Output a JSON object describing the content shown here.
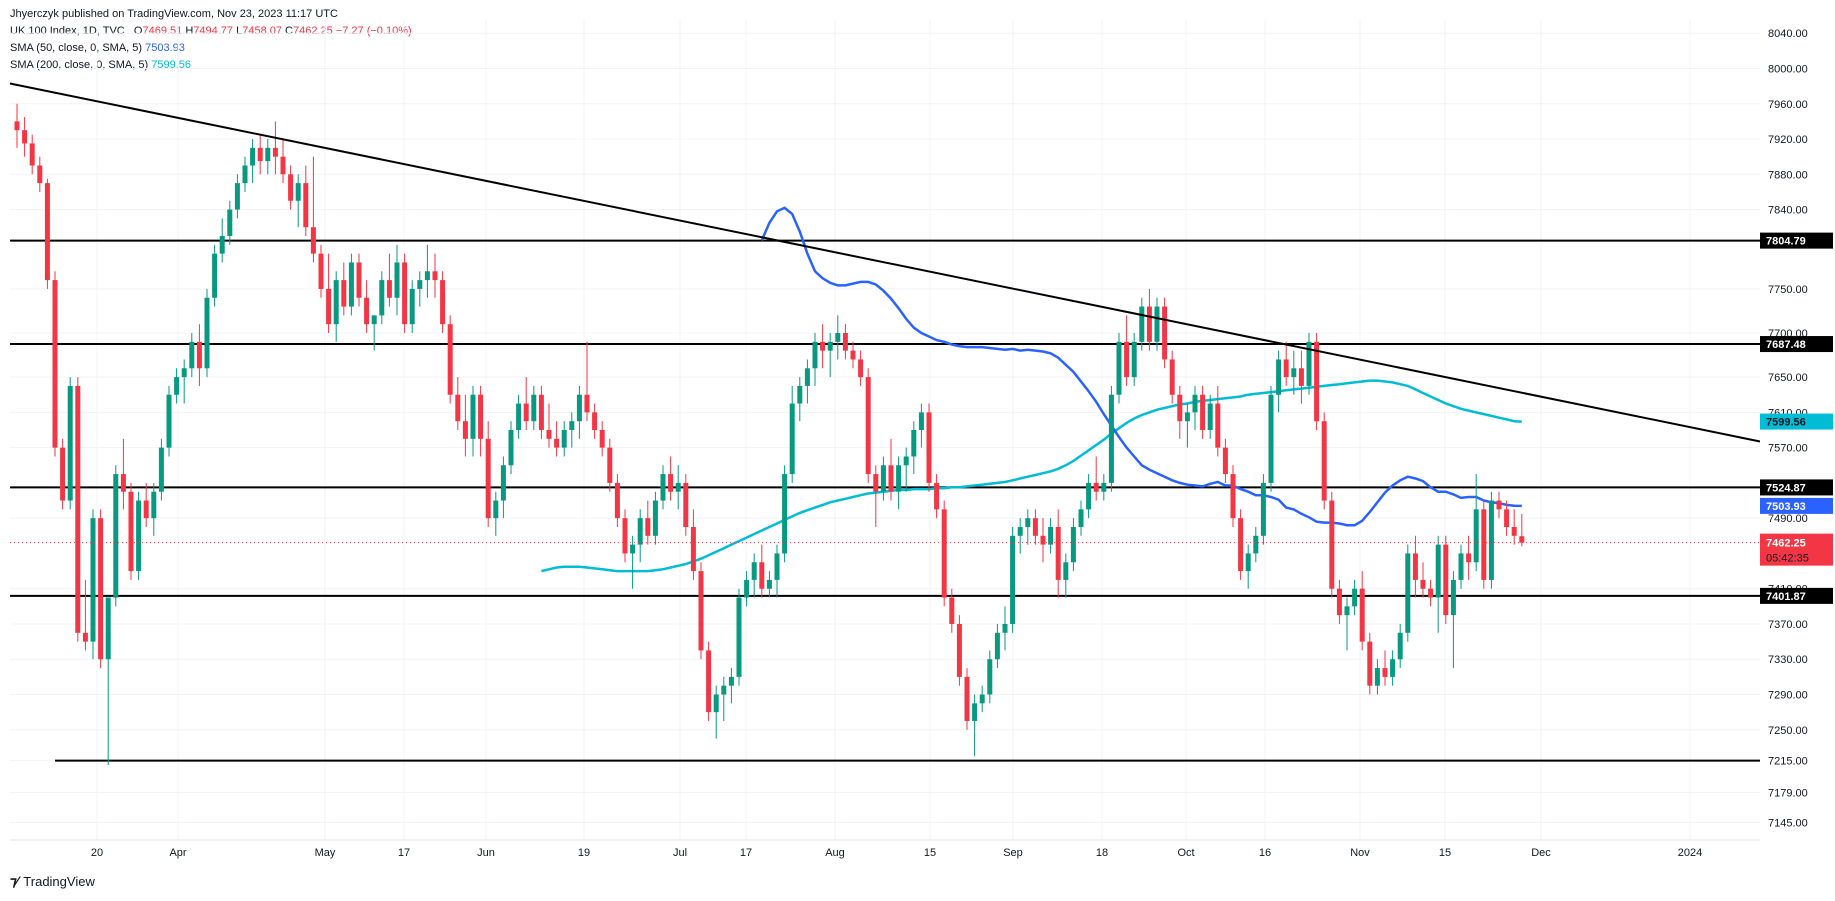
{
  "header": {
    "publisher": "Jhyerczyk published on TradingView.com, Nov 23, 2023 11:17 UTC",
    "symbol": "UK 100 Index, 1D, TVC",
    "o_label": "O",
    "o_value": "7469.51",
    "h_label": "H",
    "h_value": "7494.77",
    "l_label": "L",
    "l_value": "7458.07",
    "c_label": "C",
    "c_value": "7462.25",
    "change": "−7.27 (−0.10%)",
    "sma50_label": "SMA (50, close, 0, SMA, 5)",
    "sma50_value": "7503.93",
    "sma200_label": "SMA (200, close, 0, SMA, 5)",
    "sma200_value": "7599.56"
  },
  "footer": {
    "logo": "TradingView"
  },
  "colors": {
    "up": "#089981",
    "down": "#f23645",
    "sma50": "#2962ff",
    "sma200": "#00bcd4",
    "level": "#000000",
    "grid": "#f0f3fa"
  },
  "chart_data": {
    "type": "candlestick",
    "ylim": [
      7125,
      8055
    ],
    "y_ticks": [
      "8040.00",
      "8000.00",
      "7960.00",
      "7920.00",
      "7880.00",
      "7840.00",
      "7750.00",
      "7700.00",
      "7650.00",
      "7610.00",
      "7570.00",
      "7490.00",
      "7410.00",
      "7370.00",
      "7330.00",
      "7290.00",
      "7250.00",
      "7215.00",
      "7179.00",
      "7145.00"
    ],
    "y_tick_values": [
      8040,
      8000,
      7960,
      7920,
      7880,
      7840,
      7750,
      7700,
      7650,
      7610,
      7570,
      7490,
      7410,
      7370,
      7330,
      7290,
      7250,
      7215,
      7179,
      7145
    ],
    "x_labels": [
      "20",
      "Apr",
      "May",
      "17",
      "Jun",
      "19",
      "Jul",
      "17",
      "Aug",
      "15",
      "Sep",
      "18",
      "Oct",
      "16",
      "Nov",
      "15",
      "Dec",
      "2024"
    ],
    "horizontal_levels": [
      "7804.79",
      "7687.48",
      "7524.87",
      "7401.87"
    ],
    "horizontal_level_values": [
      7804.79,
      7687.48,
      7524.87,
      7401.87
    ],
    "support_line_value": 7215,
    "trendline": {
      "start_value": 7983,
      "end_value": 7577
    },
    "last_price": "7462.25",
    "countdown": "05:42:35",
    "sma50_last": "7503.93",
    "sma200_last": "7599.56",
    "candles": [
      [
        7940,
        7960,
        7910,
        7930
      ],
      [
        7930,
        7945,
        7900,
        7915
      ],
      [
        7915,
        7925,
        7880,
        7890
      ],
      [
        7890,
        7900,
        7860,
        7870
      ],
      [
        7870,
        7875,
        7750,
        7760
      ],
      [
        7760,
        7770,
        7560,
        7570
      ],
      [
        7570,
        7580,
        7500,
        7510
      ],
      [
        7510,
        7650,
        7500,
        7640
      ],
      [
        7640,
        7650,
        7350,
        7360
      ],
      [
        7360,
        7420,
        7340,
        7350
      ],
      [
        7350,
        7500,
        7330,
        7490
      ],
      [
        7490,
        7500,
        7320,
        7330
      ],
      [
        7330,
        7400,
        7210,
        7400
      ],
      [
        7400,
        7550,
        7390,
        7540
      ],
      [
        7540,
        7580,
        7500,
        7520
      ],
      [
        7520,
        7530,
        7420,
        7430
      ],
      [
        7430,
        7520,
        7420,
        7510
      ],
      [
        7510,
        7530,
        7480,
        7490
      ],
      [
        7490,
        7530,
        7470,
        7520
      ],
      [
        7520,
        7580,
        7510,
        7570
      ],
      [
        7570,
        7640,
        7560,
        7630
      ],
      [
        7630,
        7660,
        7620,
        7650
      ],
      [
        7650,
        7670,
        7620,
        7660
      ],
      [
        7660,
        7700,
        7650,
        7690
      ],
      [
        7690,
        7710,
        7640,
        7660
      ],
      [
        7660,
        7750,
        7650,
        7740
      ],
      [
        7740,
        7800,
        7730,
        7790
      ],
      [
        7790,
        7830,
        7780,
        7810
      ],
      [
        7810,
        7850,
        7800,
        7840
      ],
      [
        7840,
        7880,
        7830,
        7870
      ],
      [
        7870,
        7900,
        7860,
        7890
      ],
      [
        7890,
        7920,
        7870,
        7910
      ],
      [
        7910,
        7925,
        7880,
        7895
      ],
      [
        7895,
        7920,
        7880,
        7910
      ],
      [
        7910,
        7940,
        7880,
        7900
      ],
      [
        7900,
        7920,
        7870,
        7880
      ],
      [
        7880,
        7890,
        7840,
        7850
      ],
      [
        7850,
        7880,
        7820,
        7870
      ],
      [
        7870,
        7890,
        7810,
        7820
      ],
      [
        7820,
        7900,
        7780,
        7790
      ],
      [
        7790,
        7800,
        7740,
        7750
      ],
      [
        7750,
        7790,
        7700,
        7710
      ],
      [
        7710,
        7770,
        7690,
        7760
      ],
      [
        7760,
        7780,
        7720,
        7730
      ],
      [
        7730,
        7790,
        7720,
        7780
      ],
      [
        7780,
        7790,
        7730,
        7740
      ],
      [
        7740,
        7760,
        7700,
        7710
      ],
      [
        7710,
        7720,
        7680,
        7720
      ],
      [
        7720,
        7770,
        7710,
        7760
      ],
      [
        7760,
        7790,
        7730,
        7740
      ],
      [
        7740,
        7800,
        7720,
        7780
      ],
      [
        7780,
        7790,
        7700,
        7710
      ],
      [
        7710,
        7760,
        7700,
        7750
      ],
      [
        7750,
        7770,
        7730,
        7760
      ],
      [
        7760,
        7800,
        7740,
        7770
      ],
      [
        7770,
        7790,
        7740,
        7760
      ],
      [
        7760,
        7770,
        7700,
        7710
      ],
      [
        7710,
        7720,
        7620,
        7630
      ],
      [
        7630,
        7650,
        7590,
        7600
      ],
      [
        7600,
        7630,
        7560,
        7580
      ],
      [
        7580,
        7640,
        7560,
        7630
      ],
      [
        7630,
        7640,
        7560,
        7580
      ],
      [
        7580,
        7600,
        7480,
        7490
      ],
      [
        7490,
        7520,
        7470,
        7510
      ],
      [
        7510,
        7560,
        7490,
        7550
      ],
      [
        7550,
        7600,
        7540,
        7590
      ],
      [
        7590,
        7630,
        7580,
        7620
      ],
      [
        7620,
        7650,
        7590,
        7600
      ],
      [
        7600,
        7640,
        7590,
        7630
      ],
      [
        7630,
        7640,
        7580,
        7590
      ],
      [
        7590,
        7620,
        7570,
        7580
      ],
      [
        7580,
        7600,
        7560,
        7570
      ],
      [
        7570,
        7600,
        7560,
        7590
      ],
      [
        7590,
        7610,
        7570,
        7600
      ],
      [
        7600,
        7640,
        7580,
        7630
      ],
      [
        7630,
        7690,
        7600,
        7610
      ],
      [
        7610,
        7620,
        7580,
        7590
      ],
      [
        7590,
        7600,
        7560,
        7570
      ],
      [
        7570,
        7580,
        7520,
        7530
      ],
      [
        7530,
        7540,
        7480,
        7490
      ],
      [
        7490,
        7500,
        7440,
        7450
      ],
      [
        7450,
        7470,
        7410,
        7460
      ],
      [
        7460,
        7500,
        7440,
        7490
      ],
      [
        7490,
        7510,
        7460,
        7470
      ],
      [
        7470,
        7520,
        7460,
        7510
      ],
      [
        7510,
        7550,
        7500,
        7540
      ],
      [
        7540,
        7560,
        7510,
        7520
      ],
      [
        7520,
        7550,
        7500,
        7530
      ],
      [
        7530,
        7540,
        7470,
        7480
      ],
      [
        7480,
        7500,
        7420,
        7430
      ],
      [
        7430,
        7440,
        7330,
        7340
      ],
      [
        7340,
        7350,
        7260,
        7270
      ],
      [
        7270,
        7300,
        7240,
        7290
      ],
      [
        7290,
        7310,
        7260,
        7300
      ],
      [
        7300,
        7320,
        7280,
        7310
      ],
      [
        7310,
        7410,
        7300,
        7400
      ],
      [
        7400,
        7430,
        7390,
        7420
      ],
      [
        7420,
        7450,
        7400,
        7440
      ],
      [
        7440,
        7460,
        7400,
        7410
      ],
      [
        7410,
        7430,
        7400,
        7420
      ],
      [
        7420,
        7460,
        7400,
        7450
      ],
      [
        7450,
        7550,
        7440,
        7540
      ],
      [
        7540,
        7640,
        7530,
        7620
      ],
      [
        7620,
        7650,
        7600,
        7640
      ],
      [
        7640,
        7670,
        7620,
        7660
      ],
      [
        7660,
        7700,
        7640,
        7690
      ],
      [
        7690,
        7710,
        7660,
        7680
      ],
      [
        7680,
        7700,
        7650,
        7690
      ],
      [
        7690,
        7720,
        7670,
        7700
      ],
      [
        7700,
        7710,
        7670,
        7680
      ],
      [
        7680,
        7690,
        7660,
        7670
      ],
      [
        7670,
        7680,
        7640,
        7650
      ],
      [
        7650,
        7660,
        7530,
        7540
      ],
      [
        7540,
        7550,
        7480,
        7520
      ],
      [
        7520,
        7560,
        7510,
        7550
      ],
      [
        7550,
        7580,
        7510,
        7520
      ],
      [
        7520,
        7560,
        7500,
        7550
      ],
      [
        7550,
        7570,
        7520,
        7560
      ],
      [
        7560,
        7600,
        7540,
        7590
      ],
      [
        7590,
        7620,
        7570,
        7610
      ],
      [
        7610,
        7620,
        7520,
        7530
      ],
      [
        7530,
        7540,
        7490,
        7500
      ],
      [
        7500,
        7510,
        7390,
        7400
      ],
      [
        7400,
        7410,
        7360,
        7370
      ],
      [
        7370,
        7380,
        7300,
        7310
      ],
      [
        7310,
        7320,
        7250,
        7260
      ],
      [
        7260,
        7290,
        7220,
        7280
      ],
      [
        7280,
        7300,
        7270,
        7290
      ],
      [
        7290,
        7340,
        7280,
        7330
      ],
      [
        7330,
        7370,
        7320,
        7360
      ],
      [
        7360,
        7390,
        7340,
        7370
      ],
      [
        7370,
        7480,
        7360,
        7470
      ],
      [
        7470,
        7490,
        7450,
        7480
      ],
      [
        7480,
        7500,
        7460,
        7490
      ],
      [
        7490,
        7500,
        7460,
        7470
      ],
      [
        7470,
        7490,
        7440,
        7460
      ],
      [
        7460,
        7490,
        7450,
        7480
      ],
      [
        7480,
        7500,
        7400,
        7420
      ],
      [
        7420,
        7450,
        7400,
        7440
      ],
      [
        7440,
        7490,
        7430,
        7480
      ],
      [
        7480,
        7510,
        7470,
        7500
      ],
      [
        7500,
        7540,
        7490,
        7530
      ],
      [
        7530,
        7560,
        7510,
        7520
      ],
      [
        7520,
        7540,
        7510,
        7530
      ],
      [
        7530,
        7640,
        7520,
        7630
      ],
      [
        7630,
        7700,
        7620,
        7690
      ],
      [
        7690,
        7720,
        7640,
        7650
      ],
      [
        7650,
        7700,
        7640,
        7690
      ],
      [
        7690,
        7740,
        7680,
        7730
      ],
      [
        7730,
        7750,
        7680,
        7690
      ],
      [
        7690,
        7740,
        7680,
        7730
      ],
      [
        7730,
        7740,
        7660,
        7670
      ],
      [
        7670,
        7680,
        7620,
        7630
      ],
      [
        7630,
        7640,
        7580,
        7600
      ],
      [
        7600,
        7620,
        7570,
        7610
      ],
      [
        7610,
        7640,
        7590,
        7630
      ],
      [
        7630,
        7640,
        7580,
        7590
      ],
      [
        7590,
        7630,
        7580,
        7620
      ],
      [
        7620,
        7640,
        7560,
        7570
      ],
      [
        7570,
        7580,
        7530,
        7540
      ],
      [
        7540,
        7550,
        7480,
        7490
      ],
      [
        7490,
        7500,
        7420,
        7430
      ],
      [
        7430,
        7460,
        7410,
        7450
      ],
      [
        7450,
        7480,
        7440,
        7470
      ],
      [
        7470,
        7540,
        7460,
        7530
      ],
      [
        7530,
        7640,
        7520,
        7630
      ],
      [
        7630,
        7680,
        7610,
        7670
      ],
      [
        7670,
        7690,
        7640,
        7650
      ],
      [
        7650,
        7680,
        7630,
        7660
      ],
      [
        7660,
        7680,
        7620,
        7640
      ],
      [
        7640,
        7700,
        7630,
        7690
      ],
      [
        7690,
        7700,
        7590,
        7600
      ],
      [
        7600,
        7610,
        7500,
        7510
      ],
      [
        7510,
        7520,
        7400,
        7410
      ],
      [
        7410,
        7420,
        7370,
        7380
      ],
      [
        7380,
        7400,
        7340,
        7390
      ],
      [
        7390,
        7420,
        7380,
        7410
      ],
      [
        7410,
        7430,
        7340,
        7350
      ],
      [
        7350,
        7360,
        7290,
        7300
      ],
      [
        7300,
        7330,
        7290,
        7320
      ],
      [
        7320,
        7340,
        7300,
        7310
      ],
      [
        7310,
        7340,
        7300,
        7330
      ],
      [
        7330,
        7370,
        7320,
        7360
      ],
      [
        7360,
        7460,
        7350,
        7450
      ],
      [
        7450,
        7470,
        7400,
        7420
      ],
      [
        7420,
        7440,
        7400,
        7410
      ],
      [
        7410,
        7420,
        7390,
        7400
      ],
      [
        7400,
        7470,
        7360,
        7460
      ],
      [
        7460,
        7470,
        7370,
        7380
      ],
      [
        7380,
        7430,
        7320,
        7420
      ],
      [
        7420,
        7460,
        7410,
        7450
      ],
      [
        7450,
        7470,
        7420,
        7440
      ],
      [
        7440,
        7540,
        7430,
        7500
      ],
      [
        7500,
        7510,
        7410,
        7420
      ],
      [
        7420,
        7520,
        7410,
        7510
      ],
      [
        7510,
        7520,
        7490,
        7500
      ],
      [
        7500,
        7510,
        7470,
        7480
      ],
      [
        7480,
        7500,
        7460,
        7470
      ],
      [
        7469.51,
        7494.77,
        7458.07,
        7462.25
      ]
    ],
    "sma50": [
      7805,
      7825,
      7838,
      7842,
      7835,
      7815,
      7790,
      7770,
      7762,
      7757,
      7754,
      7754,
      7756,
      7758,
      7758,
      7755,
      7748,
      7739,
      7728,
      7716,
      7706,
      7700,
      7696,
      7692,
      7690,
      7687,
      7685,
      7684,
      7684,
      7684,
      7683,
      7682,
      7681,
      7682,
      7680,
      7681,
      7680,
      7679,
      7677,
      7672,
      7664,
      7656,
      7645,
      7634,
      7622,
      7608,
      7595,
      7582,
      7570,
      7560,
      7550,
      7545,
      7541,
      7537,
      7533,
      7530,
      7528,
      7527,
      7526,
      7529,
      7531,
      7527,
      7527,
      7523,
      7520,
      7516,
      7516,
      7514,
      7511,
      7502,
      7500,
      7495,
      7491,
      7486,
      7485,
      7485,
      7484,
      7482,
      7482,
      7487,
      7497,
      7508,
      7519,
      7527,
      7533,
      7537,
      7535,
      7532,
      7525,
      7520,
      7520,
      7517,
      7513,
      7514,
      7514,
      7510,
      7508,
      7507,
      7505,
      7504,
      7503.93
    ],
    "sma200": [
      7430,
      7432,
      7434,
      7435,
      7435,
      7435,
      7434,
      7433,
      7432,
      7431,
      7430,
      7430,
      7430,
      7430,
      7430,
      7431,
      7432,
      7434,
      7436,
      7438,
      7441,
      7444,
      7448,
      7452,
      7456,
      7460,
      7464,
      7468,
      7472,
      7476,
      7480,
      7484,
      7488,
      7492,
      7496,
      7499,
      7502,
      7505,
      7508,
      7510,
      7512,
      7514,
      7516,
      7518,
      7519,
      7520,
      7521,
      7522,
      7522,
      7523,
      7523,
      7523,
      7524,
      7524,
      7525,
      7525,
      7526,
      7527,
      7528,
      7529,
      7530,
      7531,
      7533,
      7535,
      7537,
      7539,
      7541,
      7543,
      7546,
      7550,
      7555,
      7561,
      7567,
      7573,
      7579,
      7586,
      7592,
      7598,
      7603,
      7607,
      7610,
      7613,
      7615,
      7617,
      7619,
      7620,
      7622,
      7623,
      7624,
      7625,
      7626,
      7627,
      7628,
      7630,
      7631,
      7632,
      7633,
      7634,
      7635,
      7636,
      7637,
      7638,
      7639,
      7640,
      7641,
      7642,
      7643,
      7644,
      7645,
      7646,
      7646,
      7645,
      7644,
      7642,
      7640,
      7636,
      7632,
      7628,
      7624,
      7620,
      7617,
      7614,
      7612,
      7610,
      7608,
      7606,
      7604,
      7602,
      7600,
      7599.56
    ]
  }
}
